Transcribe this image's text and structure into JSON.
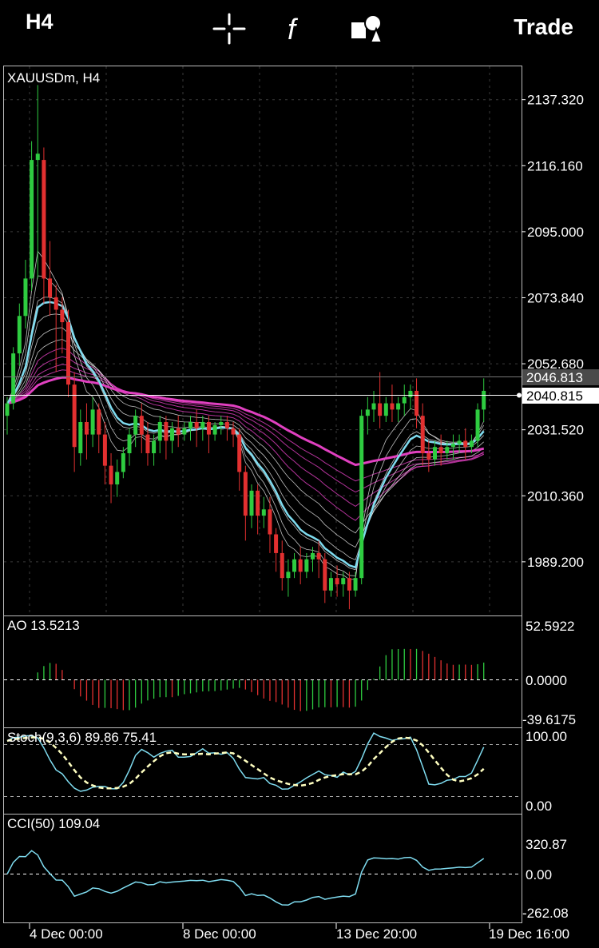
{
  "topbar": {
    "timeframe": "H4",
    "trade": "Trade",
    "icons": [
      "crosshair-icon",
      "function-icon",
      "objects-icon"
    ]
  },
  "main": {
    "symbol_label": "XAUUSDm, H4",
    "price_ticks": [
      "2137.320",
      "2116.160",
      "2095.000",
      "2073.840",
      "2052.680",
      "2031.520",
      "2010.360",
      "1989.200"
    ],
    "ask_label": "2046.813",
    "bid_label": "2040.815"
  },
  "ao": {
    "label": "AO 13.5213",
    "ticks": [
      "52.5922",
      "0.0000",
      "-39.6175"
    ]
  },
  "stoch": {
    "label": "Stoch(9,3,6) 89.86 75.41",
    "ticks": [
      "100.00",
      "0.00"
    ]
  },
  "cci": {
    "label": "CCI(50) 109.04",
    "ticks": [
      "320.87",
      "0.00",
      "-262.08"
    ]
  },
  "time_axis": [
    "4 Dec 00:00",
    "8 Dec 00:00",
    "13 Dec 20:00",
    "19 Dec 16:00"
  ],
  "colors": {
    "bull": "#2ecc40",
    "bear": "#e23030",
    "ma_fast": "#7fdcf0",
    "ma_slow": "#e040c0",
    "grid": "#3a3a3a"
  },
  "chart_data": {
    "type": "candlestick",
    "symbol": "XAUUSDm",
    "timeframe": "H4",
    "ylim": [
      1972,
      2148
    ],
    "candles": [
      {
        "o": 2036,
        "h": 2042,
        "c": 2040,
        "l": 2030
      },
      {
        "o": 2040,
        "h": 2058,
        "c": 2056,
        "l": 2038
      },
      {
        "o": 2056,
        "h": 2072,
        "c": 2068,
        "l": 2052
      },
      {
        "o": 2068,
        "h": 2086,
        "c": 2080,
        "l": 2064
      },
      {
        "o": 2080,
        "h": 2124,
        "c": 2118,
        "l": 2076
      },
      {
        "o": 2118,
        "h": 2142,
        "c": 2120,
        "l": 2080
      },
      {
        "o": 2118,
        "h": 2122,
        "c": 2080,
        "l": 2072
      },
      {
        "o": 2080,
        "h": 2092,
        "c": 2074,
        "l": 2068
      },
      {
        "o": 2074,
        "h": 2078,
        "c": 2070,
        "l": 2050
      },
      {
        "o": 2070,
        "h": 2074,
        "c": 2066,
        "l": 2056
      },
      {
        "o": 2066,
        "h": 2070,
        "c": 2046,
        "l": 2042
      },
      {
        "o": 2046,
        "h": 2050,
        "c": 2026,
        "l": 2018
      },
      {
        "o": 2024,
        "h": 2038,
        "c": 2034,
        "l": 2020
      },
      {
        "o": 2034,
        "h": 2040,
        "c": 2030,
        "l": 2022
      },
      {
        "o": 2030,
        "h": 2042,
        "c": 2038,
        "l": 2026
      },
      {
        "o": 2038,
        "h": 2040,
        "c": 2030,
        "l": 2024
      },
      {
        "o": 2030,
        "h": 2034,
        "c": 2020,
        "l": 2014
      },
      {
        "o": 2020,
        "h": 2024,
        "c": 2014,
        "l": 2008
      },
      {
        "o": 2014,
        "h": 2022,
        "c": 2018,
        "l": 2010
      },
      {
        "o": 2018,
        "h": 2026,
        "c": 2024,
        "l": 2016
      },
      {
        "o": 2024,
        "h": 2032,
        "c": 2030,
        "l": 2020
      },
      {
        "o": 2030,
        "h": 2038,
        "c": 2036,
        "l": 2026
      },
      {
        "o": 2036,
        "h": 2040,
        "c": 2030,
        "l": 2024
      },
      {
        "o": 2030,
        "h": 2034,
        "c": 2024,
        "l": 2020
      },
      {
        "o": 2024,
        "h": 2030,
        "c": 2028,
        "l": 2020
      },
      {
        "o": 2028,
        "h": 2036,
        "c": 2034,
        "l": 2024
      },
      {
        "o": 2034,
        "h": 2036,
        "c": 2028,
        "l": 2022
      },
      {
        "o": 2028,
        "h": 2034,
        "c": 2032,
        "l": 2024
      },
      {
        "o": 2032,
        "h": 2036,
        "c": 2030,
        "l": 2026
      },
      {
        "o": 2030,
        "h": 2034,
        "c": 2032,
        "l": 2028
      },
      {
        "o": 2032,
        "h": 2036,
        "c": 2034,
        "l": 2028
      },
      {
        "o": 2034,
        "h": 2038,
        "c": 2032,
        "l": 2026
      },
      {
        "o": 2032,
        "h": 2036,
        "c": 2034,
        "l": 2028
      },
      {
        "o": 2034,
        "h": 2036,
        "c": 2030,
        "l": 2024
      },
      {
        "o": 2030,
        "h": 2034,
        "c": 2033,
        "l": 2028
      },
      {
        "o": 2033,
        "h": 2036,
        "c": 2034,
        "l": 2030
      },
      {
        "o": 2034,
        "h": 2036,
        "c": 2032,
        "l": 2028
      },
      {
        "o": 2032,
        "h": 2034,
        "c": 2030,
        "l": 2026
      },
      {
        "o": 2030,
        "h": 2032,
        "c": 2018,
        "l": 2012
      },
      {
        "o": 2018,
        "h": 2020,
        "c": 2004,
        "l": 1996
      },
      {
        "o": 2004,
        "h": 2014,
        "c": 2012,
        "l": 2000
      },
      {
        "o": 2012,
        "h": 2014,
        "c": 2004,
        "l": 1998
      },
      {
        "o": 2004,
        "h": 2010,
        "c": 2006,
        "l": 2000
      },
      {
        "o": 2006,
        "h": 2010,
        "c": 1998,
        "l": 1992
      },
      {
        "o": 1998,
        "h": 2000,
        "c": 1992,
        "l": 1986
      },
      {
        "o": 1992,
        "h": 1996,
        "c": 1984,
        "l": 1980
      },
      {
        "o": 1984,
        "h": 1990,
        "c": 1986,
        "l": 1978
      },
      {
        "o": 1986,
        "h": 1992,
        "c": 1990,
        "l": 1984
      },
      {
        "o": 1990,
        "h": 1994,
        "c": 1986,
        "l": 1982
      },
      {
        "o": 1986,
        "h": 1992,
        "c": 1990,
        "l": 1984
      },
      {
        "o": 1990,
        "h": 1994,
        "c": 1992,
        "l": 1986
      },
      {
        "o": 1992,
        "h": 1996,
        "c": 1990,
        "l": 1984
      },
      {
        "o": 1990,
        "h": 1992,
        "c": 1980,
        "l": 1976
      },
      {
        "o": 1980,
        "h": 1986,
        "c": 1984,
        "l": 1978
      },
      {
        "o": 1984,
        "h": 1988,
        "c": 1982,
        "l": 1978
      },
      {
        "o": 1982,
        "h": 1986,
        "c": 1984,
        "l": 1978
      },
      {
        "o": 1984,
        "h": 1986,
        "c": 1980,
        "l": 1974
      },
      {
        "o": 1980,
        "h": 1986,
        "c": 1984,
        "l": 1978
      },
      {
        "o": 1984,
        "h": 2038,
        "c": 2036,
        "l": 1982
      },
      {
        "o": 2036,
        "h": 2042,
        "c": 2038,
        "l": 2030
      },
      {
        "o": 2038,
        "h": 2044,
        "c": 2040,
        "l": 2034
      },
      {
        "o": 2040,
        "h": 2050,
        "c": 2036,
        "l": 2032
      },
      {
        "o": 2036,
        "h": 2042,
        "c": 2040,
        "l": 2034
      },
      {
        "o": 2040,
        "h": 2046,
        "c": 2038,
        "l": 2034
      },
      {
        "o": 2038,
        "h": 2042,
        "c": 2040,
        "l": 2034
      },
      {
        "o": 2040,
        "h": 2046,
        "c": 2042,
        "l": 2036
      },
      {
        "o": 2042,
        "h": 2046,
        "c": 2044,
        "l": 2038
      },
      {
        "o": 2044,
        "h": 2048,
        "c": 2036,
        "l": 2032
      },
      {
        "o": 2036,
        "h": 2040,
        "c": 2024,
        "l": 2020
      },
      {
        "o": 2024,
        "h": 2028,
        "c": 2022,
        "l": 2018
      },
      {
        "o": 2022,
        "h": 2028,
        "c": 2026,
        "l": 2020
      },
      {
        "o": 2026,
        "h": 2030,
        "c": 2024,
        "l": 2020
      },
      {
        "o": 2024,
        "h": 2028,
        "c": 2026,
        "l": 2022
      },
      {
        "o": 2026,
        "h": 2030,
        "c": 2027,
        "l": 2022
      },
      {
        "o": 2027,
        "h": 2030,
        "c": 2028,
        "l": 2024
      },
      {
        "o": 2028,
        "h": 2032,
        "c": 2026,
        "l": 2022
      },
      {
        "o": 2026,
        "h": 2030,
        "c": 2028,
        "l": 2024
      },
      {
        "o": 2028,
        "h": 2040,
        "c": 2038,
        "l": 2026
      },
      {
        "o": 2038,
        "h": 2048,
        "c": 2044,
        "l": 2034
      }
    ]
  }
}
